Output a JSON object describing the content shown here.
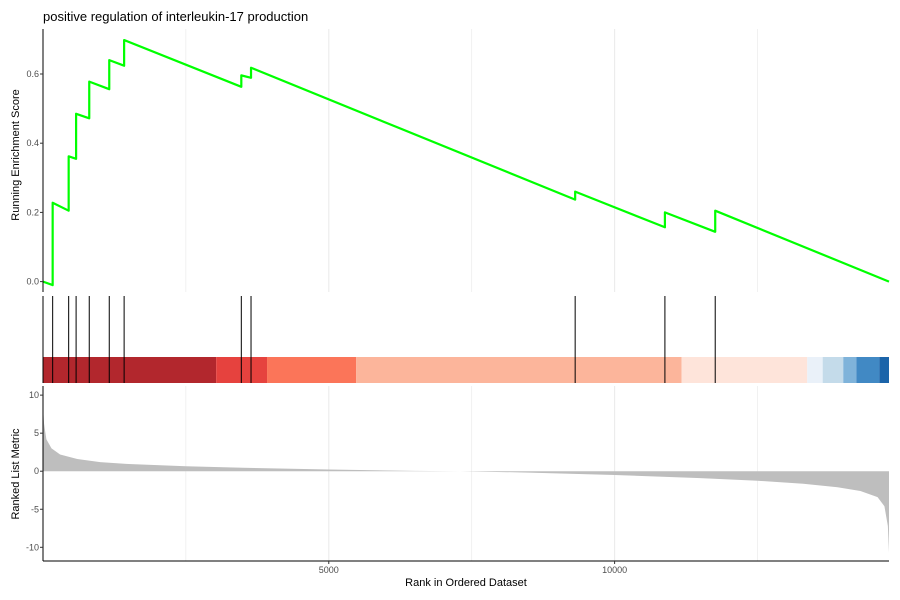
{
  "chart_data": {
    "type": "line",
    "title": "positive regulation of interleukin-17 production",
    "xlabel": "Rank in Ordered Dataset",
    "xlim": [
      1,
      14800
    ],
    "x_ticks": [
      5000,
      10000
    ],
    "grid": "vertical",
    "colors": {
      "es_line": "#00ff00",
      "hit_line": "#000000",
      "metric_fill": "#bebebe",
      "gridline": "#ebebeb"
    },
    "panels": [
      {
        "name": "running-es",
        "ylabel": "Running Enrichment Score",
        "ylim": [
          -0.03,
          0.73
        ],
        "y_ticks": [
          0.0,
          0.2,
          0.4,
          0.6
        ],
        "y_tick_labels": [
          "0.0",
          "0.2",
          "0.4",
          "0.6"
        ],
        "series": [
          {
            "x": [
              1,
              170,
              170,
              450,
              450,
              580,
              580,
              810,
              810,
              1160,
              1160,
              1420,
              1420,
              3470,
              3470,
              3640,
              3640,
              9310,
              9310,
              10880,
              10880,
              11760,
              11760,
              14800
            ],
            "y": [
              0.0,
              -0.01,
              0.228,
              0.205,
              0.362,
              0.355,
              0.485,
              0.472,
              0.578,
              0.556,
              0.64,
              0.624,
              0.698,
              0.563,
              0.596,
              0.589,
              0.618,
              0.237,
              0.26,
              0.157,
              0.2,
              0.144,
              0.205,
              0.0
            ]
          }
        ]
      },
      {
        "name": "hits",
        "hit_ranks": [
          170,
          450,
          580,
          810,
          1160,
          1420,
          3470,
          3640,
          9310,
          10880,
          11760
        ],
        "color_bands": [
          {
            "start": 1,
            "end": 3030,
            "color": "#b2272d"
          },
          {
            "start": 3030,
            "end": 3920,
            "color": "#e6423e"
          },
          {
            "start": 3920,
            "end": 5480,
            "color": "#fb7559"
          },
          {
            "start": 5480,
            "end": 11170,
            "color": "#fcb59b"
          },
          {
            "start": 11170,
            "end": 13370,
            "color": "#fee4da"
          },
          {
            "start": 13370,
            "end": 13640,
            "color": "#eaf1f9"
          },
          {
            "start": 13640,
            "end": 14000,
            "color": "#c4dbea"
          },
          {
            "start": 14000,
            "end": 14230,
            "color": "#7fb3da"
          },
          {
            "start": 14230,
            "end": 14630,
            "color": "#4189c4"
          },
          {
            "start": 14630,
            "end": 14800,
            "color": "#1b64a9"
          }
        ]
      },
      {
        "name": "ranked-metric",
        "type": "area",
        "ylabel": "Ranked List Metric",
        "ylim": [
          -11.8,
          11.2
        ],
        "y_ticks": [
          10,
          5,
          0,
          -5,
          -10
        ],
        "y_tick_labels": [
          "10",
          "5",
          "0",
          "-5",
          "-10"
        ],
        "series": [
          {
            "x": [
              1,
              20,
              60,
              150,
              300,
              600,
              1000,
              1500,
              2500,
              3500,
              5000,
              6500,
              7300,
              8500,
              10000,
              11500,
              12500,
              13300,
              13900,
              14300,
              14600,
              14720,
              14780,
              14800
            ],
            "y": [
              8.5,
              6.2,
              4.2,
              3.0,
              2.2,
              1.6,
              1.2,
              0.95,
              0.65,
              0.45,
              0.22,
              0.05,
              0.0,
              -0.18,
              -0.5,
              -0.9,
              -1.25,
              -1.65,
              -2.1,
              -2.6,
              -3.4,
              -4.6,
              -7.2,
              -10.7
            ]
          }
        ]
      }
    ]
  }
}
